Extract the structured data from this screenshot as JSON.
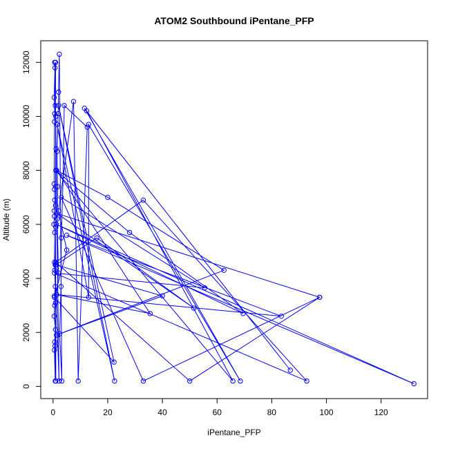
{
  "chart_data": {
    "type": "line",
    "title": "ATOM2 Southbound iPentane_PFP",
    "xlabel": "iPentane_PFP",
    "ylabel": "Altitude (m)",
    "xlim": [
      -4.5,
      137
    ],
    "ylim": [
      -450,
      12800
    ],
    "xticks": [
      0,
      20,
      40,
      60,
      80,
      100,
      120
    ],
    "yticks": [
      0,
      2000,
      4000,
      6000,
      8000,
      10000,
      12000
    ],
    "grid": false,
    "color": "#0000ff",
    "markers": "open-circle",
    "series": [
      {
        "points": [
          [
            0.8,
            200
          ],
          [
            0.5,
            1350
          ],
          [
            0.6,
            1650
          ],
          [
            0.9,
            2100
          ],
          [
            0.4,
            2600
          ],
          [
            0.6,
            3000
          ],
          [
            0.5,
            3350
          ],
          [
            0.8,
            3700
          ],
          [
            0.6,
            4300
          ],
          [
            0.5,
            4600
          ],
          [
            0.6,
            5700
          ],
          [
            0.3,
            6000
          ],
          [
            0.5,
            6300
          ],
          [
            0.4,
            6500
          ],
          [
            0.6,
            6900
          ],
          [
            0.5,
            7300
          ],
          [
            0.4,
            7500
          ],
          [
            0.5,
            9800
          ],
          [
            0.6,
            10100
          ],
          [
            0.4,
            10700
          ],
          [
            0.7,
            11800
          ],
          [
            0.9,
            12000
          ],
          [
            1.0,
            200
          ],
          [
            0.7,
            1500
          ],
          [
            0.9,
            3100
          ],
          [
            0.8,
            4500
          ],
          [
            1.0,
            5900
          ],
          [
            0.9,
            6700
          ],
          [
            1.0,
            7400
          ],
          [
            1.2,
            8000
          ],
          [
            1.1,
            8800
          ],
          [
            1.0,
            10000
          ],
          [
            0.8,
            10400
          ],
          [
            0.6,
            12000
          ],
          [
            2.2,
            200
          ],
          [
            1.6,
            1900
          ],
          [
            1.3,
            3400
          ],
          [
            2.0,
            4200
          ],
          [
            1.5,
            6200
          ],
          [
            1.7,
            7400
          ],
          [
            1.5,
            8700
          ],
          [
            1.9,
            10100
          ],
          [
            2.0,
            10900
          ],
          [
            2.3,
            12300
          ],
          [
            3.2,
            200
          ],
          [
            2.4,
            1950
          ],
          [
            2.9,
            3700
          ],
          [
            3.0,
            5500
          ],
          [
            3.7,
            7800
          ],
          [
            4.1,
            10400
          ],
          [
            12.5,
            9600
          ],
          [
            9.2,
            200
          ],
          [
            7.5,
            10550
          ],
          [
            2.0,
            6500
          ],
          [
            5.0,
            5050
          ],
          [
            0.5,
            3300
          ],
          [
            22.3,
            900
          ],
          [
            2.0,
            10400
          ],
          [
            22.5,
            200
          ],
          [
            1.5,
            9700
          ],
          [
            13.0,
            3300
          ],
          [
            13.0,
            9700
          ],
          [
            68.5,
            200
          ],
          [
            11.5,
            10300
          ],
          [
            86.8,
            600
          ],
          [
            12.3,
            10200
          ],
          [
            65.8,
            200
          ],
          [
            1.0,
            8000
          ],
          [
            28.0,
            5700
          ],
          [
            69.5,
            2700
          ],
          [
            1.2,
            6000
          ],
          [
            132.0,
            100
          ],
          [
            5.0,
            5600
          ],
          [
            83.5,
            2600
          ],
          [
            1.3,
            3400
          ],
          [
            35.5,
            2700
          ],
          [
            1.3,
            8000
          ],
          [
            20.0,
            7000
          ],
          [
            62.5,
            4300
          ],
          [
            1.2,
            1900
          ],
          [
            40.0,
            3350
          ],
          [
            1.0,
            4500
          ],
          [
            16.0,
            5500
          ],
          [
            51.5,
            2900
          ],
          [
            1.5,
            6400
          ],
          [
            97.5,
            3300
          ],
          [
            33.0,
            200
          ],
          [
            3.0,
            7000
          ],
          [
            55.5,
            3650
          ],
          [
            0.5,
            4200
          ],
          [
            92.8,
            200
          ],
          [
            33.0,
            6900
          ],
          [
            1.0,
            4600
          ],
          [
            50.0,
            200
          ],
          [
            97.5,
            3300
          ]
        ]
      }
    ]
  }
}
